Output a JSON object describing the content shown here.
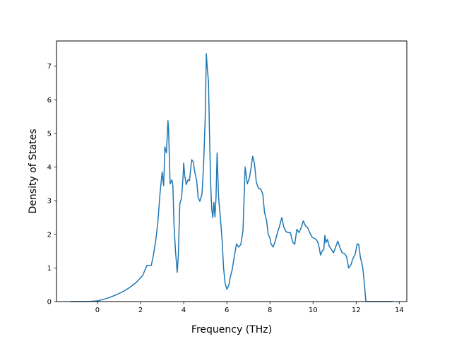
{
  "chart_data": {
    "type": "line",
    "xlabel": "Frequency (THz)",
    "ylabel": "Density of States",
    "xlim": [
      -1.9,
      14.35
    ],
    "ylim": [
      0,
      7.75
    ],
    "xticks": [
      0,
      2,
      4,
      6,
      8,
      10,
      12,
      14
    ],
    "yticks": [
      0,
      1,
      2,
      3,
      4,
      5,
      6,
      7
    ],
    "grid": false,
    "legend": "none",
    "line_color": "#1f77b4",
    "series": [
      {
        "x": [
          -1.25,
          -0.5,
          0,
          0.3,
          0.6,
          0.9,
          1.2,
          1.5,
          1.8,
          2.1,
          2.3,
          2.45,
          2.5,
          2.6,
          2.7,
          2.8,
          2.9,
          3.0,
          3.07,
          3.13,
          3.2,
          3.27,
          3.3,
          3.37,
          3.45,
          3.5,
          3.55,
          3.62,
          3.7,
          3.75,
          3.82,
          3.9,
          3.97,
          4.0,
          4.05,
          4.12,
          4.2,
          4.27,
          4.37,
          4.45,
          4.5,
          4.6,
          4.67,
          4.75,
          4.85,
          4.92,
          5.0,
          5.05,
          5.1,
          5.15,
          5.2,
          5.25,
          5.3,
          5.35,
          5.4,
          5.45,
          5.5,
          5.55,
          5.62,
          5.7,
          5.78,
          5.85,
          5.92,
          6.0,
          6.05,
          6.1,
          6.15,
          6.25,
          6.35,
          6.45,
          6.55,
          6.65,
          6.75,
          6.85,
          6.95,
          7.05,
          7.12,
          7.2,
          7.28,
          7.37,
          7.45,
          7.5,
          7.55,
          7.6,
          7.67,
          7.75,
          7.85,
          7.92,
          8.0,
          8.05,
          8.15,
          8.25,
          8.35,
          8.45,
          8.55,
          8.65,
          8.75,
          8.85,
          8.95,
          9.05,
          9.15,
          9.25,
          9.35,
          9.45,
          9.55,
          9.65,
          9.75,
          9.85,
          9.95,
          10.05,
          10.15,
          10.25,
          10.35,
          10.42,
          10.5,
          10.55,
          10.6,
          10.67,
          10.75,
          10.85,
          10.95,
          11.05,
          11.15,
          11.25,
          11.35,
          11.45,
          11.55,
          11.65,
          11.75,
          11.85,
          11.95,
          12.0,
          12.05,
          12.12,
          12.2,
          12.3,
          12.38,
          12.45,
          12.55,
          13.0,
          13.7
        ],
        "values": [
          0,
          0,
          0.02,
          0.07,
          0.13,
          0.21,
          0.3,
          0.42,
          0.57,
          0.78,
          1.08,
          1.07,
          1.08,
          1.4,
          1.8,
          2.35,
          3.2,
          3.85,
          3.45,
          4.6,
          4.42,
          5.38,
          5.1,
          3.5,
          3.62,
          3.45,
          2.3,
          1.5,
          0.87,
          1.35,
          2.9,
          3.08,
          3.7,
          4.12,
          3.75,
          3.48,
          3.62,
          3.6,
          4.22,
          4.15,
          3.9,
          3.6,
          3.1,
          2.98,
          3.2,
          4.0,
          5.5,
          7.37,
          6.9,
          6.55,
          4.9,
          3.55,
          2.75,
          2.5,
          2.95,
          2.52,
          3.1,
          4.42,
          3.1,
          2.5,
          1.85,
          1.0,
          0.55,
          0.37,
          0.42,
          0.5,
          0.7,
          0.95,
          1.35,
          1.72,
          1.62,
          1.7,
          2.1,
          4.0,
          3.5,
          3.68,
          3.95,
          4.32,
          4.12,
          3.55,
          3.4,
          3.35,
          3.36,
          3.3,
          3.2,
          2.65,
          2.4,
          2.0,
          1.9,
          1.72,
          1.62,
          1.8,
          2.05,
          2.25,
          2.5,
          2.2,
          2.08,
          2.05,
          2.05,
          1.78,
          1.7,
          2.15,
          2.05,
          2.2,
          2.4,
          2.25,
          2.2,
          2.05,
          1.92,
          1.88,
          1.85,
          1.72,
          1.38,
          1.5,
          1.55,
          1.97,
          1.75,
          1.85,
          1.65,
          1.55,
          1.45,
          1.62,
          1.8,
          1.6,
          1.45,
          1.43,
          1.35,
          1.0,
          1.08,
          1.28,
          1.4,
          1.55,
          1.72,
          1.7,
          1.3,
          1.05,
          0.55,
          0.01,
          0,
          0,
          0
        ]
      }
    ]
  }
}
